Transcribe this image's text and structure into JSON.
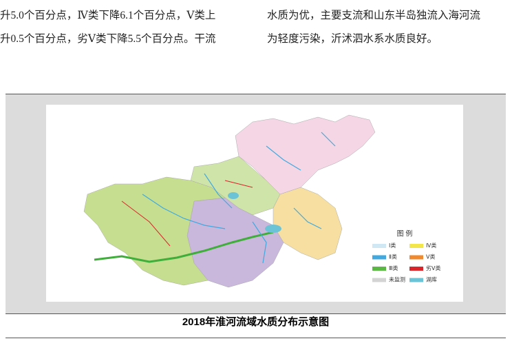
{
  "text": {
    "left": [
      "升5.0个百分点，Ⅳ类下降6.1个百分点，Ⅴ类上",
      "升0.5个百分点，劣Ⅴ类下降5.5个百分点。干流"
    ],
    "right": [
      "水质为优，主要支流和山东半岛独流入海河流",
      "为轻度污染，沂沭泗水系水质良好。"
    ]
  },
  "figure": {
    "legend": {
      "title": "图 例",
      "items": [
        {
          "label": "Ⅰ类",
          "color": "#cfe8f3"
        },
        {
          "label": "Ⅳ类",
          "color": "#f2e64a"
        },
        {
          "label": "Ⅱ类",
          "color": "#3fa9e0"
        },
        {
          "label": "Ⅴ类",
          "color": "#f08a2c"
        },
        {
          "label": "Ⅲ类",
          "color": "#5cb845"
        },
        {
          "label": "劣Ⅴ类",
          "color": "#d8262b"
        },
        {
          "label": "未监测",
          "color": "#d4d4d4"
        },
        {
          "label": "湖库",
          "color": "#6cc3d5"
        }
      ]
    },
    "caption": "2018年淮河流域水质分布示意图"
  }
}
